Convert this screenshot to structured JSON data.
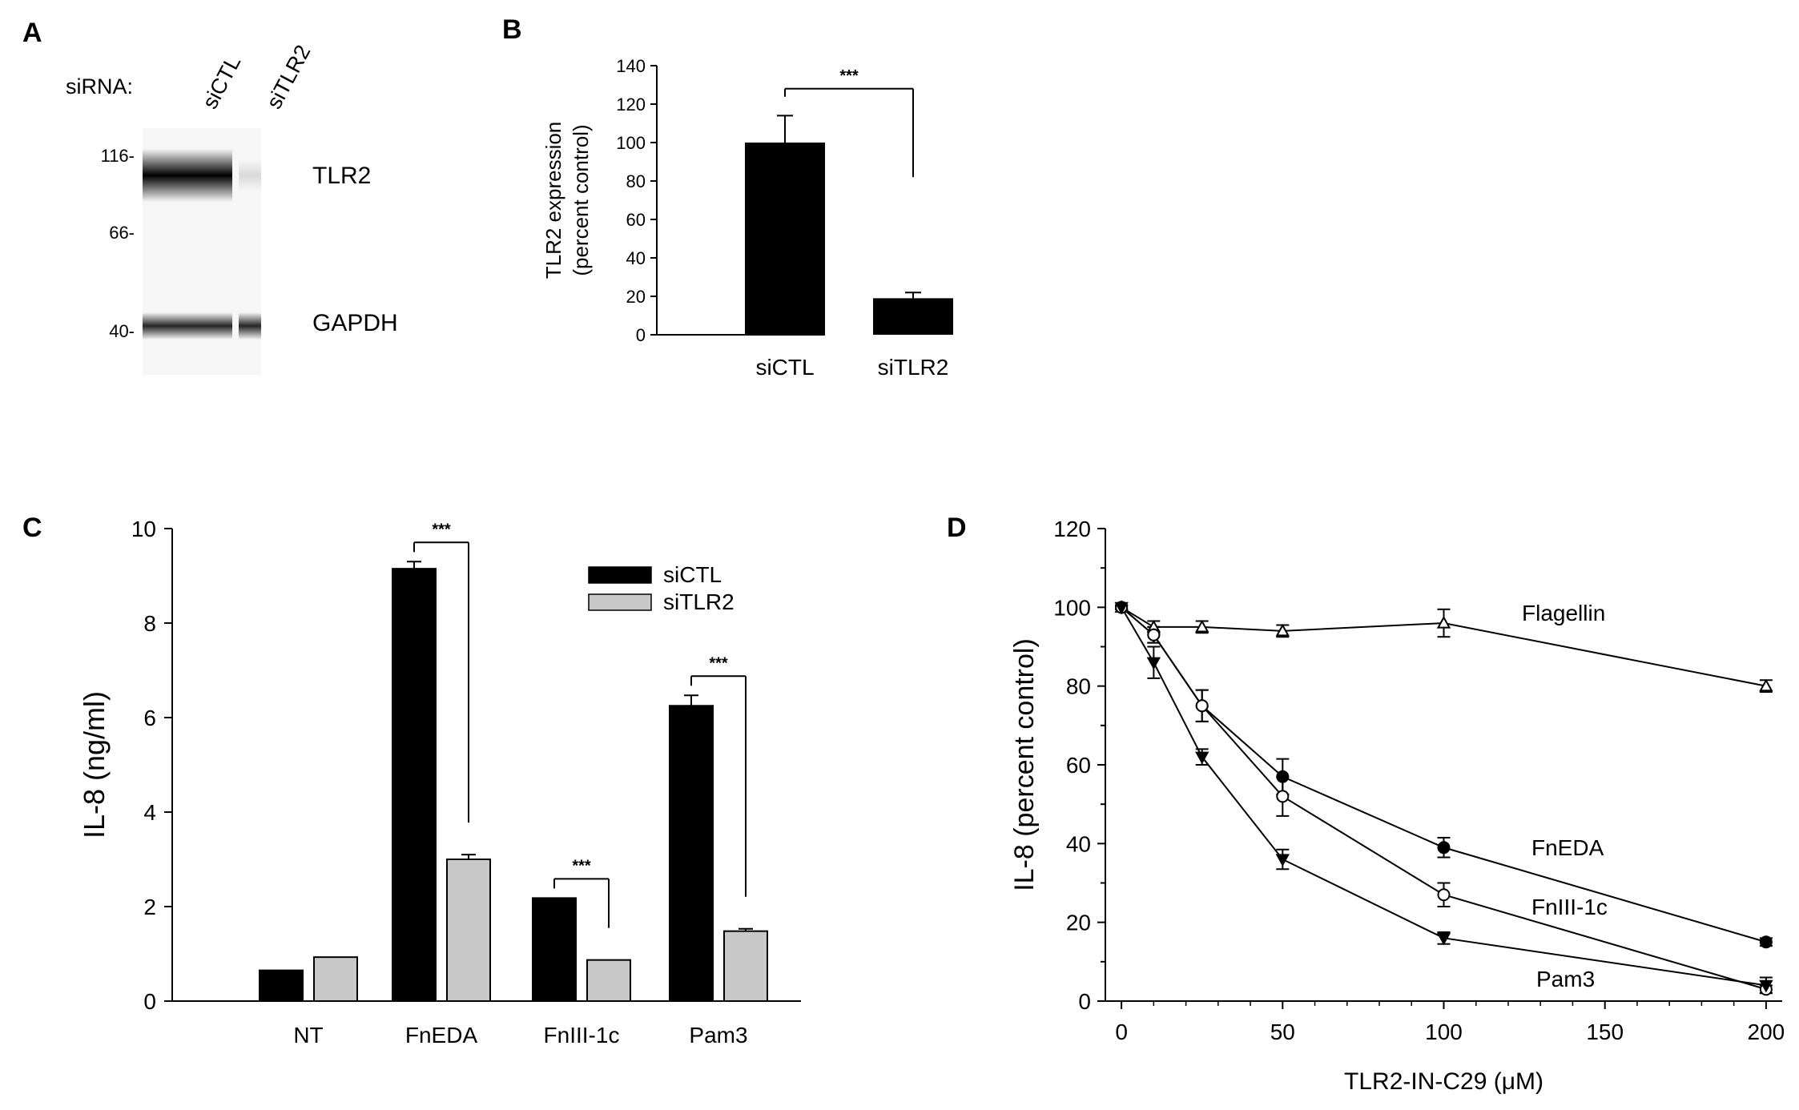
{
  "panels": {
    "A": {
      "letter": "A",
      "siRNA_label": "siRNA:",
      "lanes": [
        "siCTL",
        "siTLR2"
      ],
      "mw_markers": [
        "116-",
        "66-",
        "40-"
      ],
      "bands": [
        "TLR2",
        "GAPDH"
      ],
      "band_intensity": {
        "TLR2": [
          1.0,
          0.12
        ],
        "GAPDH": [
          0.85,
          0.85
        ]
      }
    },
    "B": {
      "letter": "B"
    },
    "C": {
      "letter": "C"
    },
    "D": {
      "letter": "D"
    }
  },
  "chart_data": [
    {
      "panel": "B",
      "type": "bar",
      "title": "",
      "xlabel": "",
      "ylabel_lines": [
        "TLR2 expression",
        "(percent control)"
      ],
      "categories": [
        "siCTL",
        "siTLR2"
      ],
      "values": [
        100,
        19
      ],
      "errors": [
        14,
        3
      ],
      "ylim": [
        0,
        140
      ],
      "yticks": [
        0,
        20,
        40,
        60,
        80,
        100,
        120,
        140
      ],
      "colors": [
        "#000000"
      ],
      "significance": [
        {
          "from": 0,
          "to": 1,
          "label": "***"
        }
      ]
    },
    {
      "panel": "C",
      "type": "bar",
      "title": "",
      "xlabel": "",
      "ylabel": "IL-8 (ng/ml)",
      "categories": [
        "NT",
        "FnEDA",
        "FnIII-1c",
        "Pam3"
      ],
      "series": [
        {
          "name": "siCTL",
          "values": [
            0.65,
            9.15,
            2.18,
            6.25
          ],
          "errors": [
            0.0,
            0.15,
            0.0,
            0.22
          ],
          "color": "#000000"
        },
        {
          "name": "siTLR2",
          "values": [
            0.93,
            3.0,
            0.87,
            1.48
          ],
          "errors": [
            0.0,
            0.1,
            0.0,
            0.05
          ],
          "color": "#c8c8c8"
        }
      ],
      "ylim": [
        0,
        10
      ],
      "yticks": [
        0,
        2,
        4,
        6,
        8,
        10
      ],
      "legend": "top-right",
      "significance": [
        {
          "category": 1,
          "label": "***"
        },
        {
          "category": 2,
          "label": "***"
        },
        {
          "category": 3,
          "label": "***"
        }
      ]
    },
    {
      "panel": "D",
      "type": "line",
      "title": "",
      "xlabel": "TLR2-IN-C29 (μM)",
      "ylabel": "IL-8 (percent control)",
      "x": [
        0,
        10,
        25,
        50,
        100,
        200
      ],
      "xlim": [
        -5,
        205
      ],
      "ylim": [
        0,
        120
      ],
      "xticks": [
        0,
        50,
        100,
        150,
        200
      ],
      "yticks": [
        0,
        20,
        40,
        60,
        80,
        100,
        120
      ],
      "series": [
        {
          "name": "Flagellin",
          "values": [
            100,
            95,
            95,
            94,
            96,
            80
          ],
          "errors": [
            0.5,
            1.5,
            1.5,
            1.5,
            3.5,
            1.5
          ],
          "marker": "triangle-up",
          "fill": "open"
        },
        {
          "name": "FnEDA",
          "values": [
            100,
            93,
            75,
            57,
            39,
            15
          ],
          "errors": [
            0.5,
            2,
            4,
            4.5,
            2.5,
            1
          ],
          "marker": "circle",
          "fill": "filled"
        },
        {
          "name": "FnIII-1c",
          "values": [
            100,
            93,
            75,
            52,
            27,
            3
          ],
          "errors": [
            0.5,
            2,
            4,
            5,
            3,
            1
          ],
          "marker": "circle",
          "fill": "open"
        },
        {
          "name": "Pam3",
          "values": [
            100,
            86,
            62,
            36,
            16,
            4
          ],
          "errors": [
            0.5,
            4,
            2,
            2.5,
            1.5,
            2
          ],
          "marker": "triangle-down",
          "fill": "filled"
        }
      ]
    }
  ]
}
